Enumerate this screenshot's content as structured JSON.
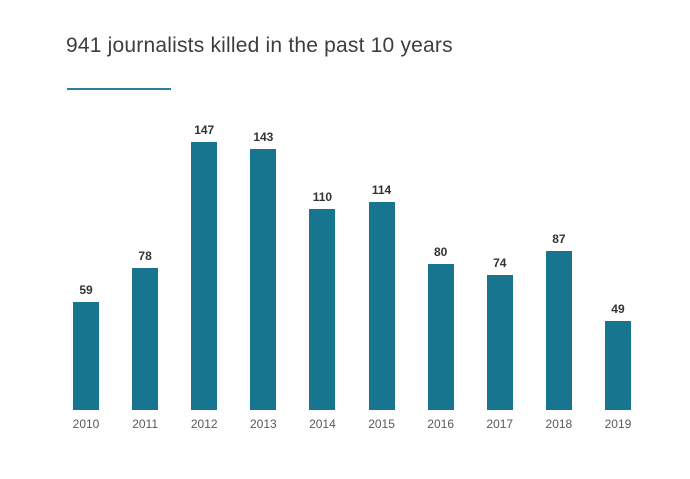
{
  "chart_data": {
    "type": "bar",
    "title": "941 journalists killed in the past 10 years",
    "categories": [
      "2010",
      "2011",
      "2012",
      "2013",
      "2014",
      "2015",
      "2016",
      "2017",
      "2018",
      "2019"
    ],
    "values": [
      59,
      78,
      147,
      143,
      110,
      114,
      80,
      74,
      87,
      49
    ],
    "xlabel": "",
    "ylabel": "",
    "ylim": [
      0,
      147
    ],
    "grid": false,
    "legend": "none",
    "bar_color": "#17758f",
    "accent_color": "#2e7f9e",
    "value_label_color": "#333333",
    "year_label_color": "#595959",
    "title_color": "#3d3d3d"
  }
}
